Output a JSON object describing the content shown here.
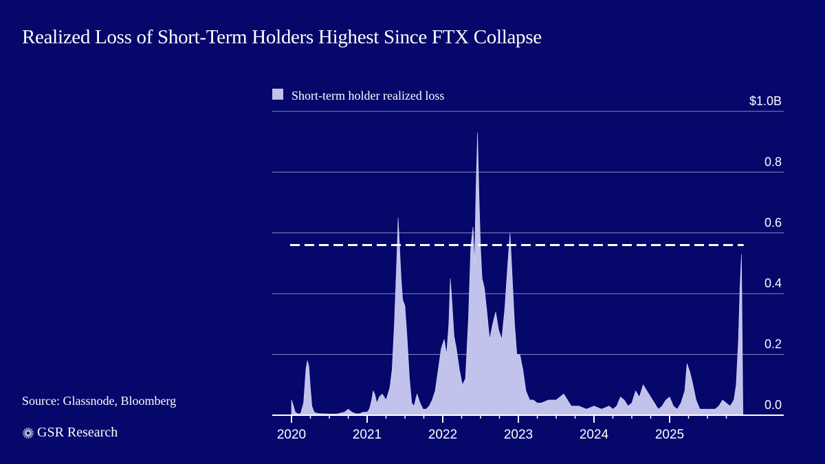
{
  "title": "Realized Loss of Short-Term Holders Highest Since FTX Collapse",
  "source": "Source: Glassnode, Bloomberg",
  "brand": "GSR Research",
  "colors": {
    "background": "#05076b",
    "area": "#c9c9ee",
    "text": "#ffffff",
    "grid": "#8a8cc4"
  },
  "chart_data": {
    "type": "area",
    "series": [
      {
        "name": "Short-term holder realized loss",
        "x": [
          2020.0,
          2020.02,
          2020.05,
          2020.08,
          2020.12,
          2020.16,
          2020.19,
          2020.21,
          2020.23,
          2020.25,
          2020.27,
          2020.3,
          2020.34,
          2020.4,
          2020.5,
          2020.6,
          2020.7,
          2020.75,
          2020.8,
          2020.85,
          2020.9,
          2020.95,
          2021.0,
          2021.03,
          2021.06,
          2021.08,
          2021.1,
          2021.13,
          2021.16,
          2021.2,
          2021.25,
          2021.3,
          2021.33,
          2021.36,
          2021.39,
          2021.41,
          2021.43,
          2021.45,
          2021.47,
          2021.5,
          2021.53,
          2021.56,
          2021.59,
          2021.62,
          2021.66,
          2021.7,
          2021.74,
          2021.78,
          2021.82,
          2021.86,
          2021.9,
          2021.94,
          2021.98,
          2022.02,
          2022.05,
          2022.08,
          2022.1,
          2022.12,
          2022.15,
          2022.18,
          2022.22,
          2022.26,
          2022.3,
          2022.34,
          2022.37,
          2022.4,
          2022.42,
          2022.44,
          2022.46,
          2022.48,
          2022.5,
          2022.52,
          2022.55,
          2022.58,
          2022.62,
          2022.66,
          2022.7,
          2022.74,
          2022.78,
          2022.82,
          2022.86,
          2022.89,
          2022.92,
          2022.95,
          2022.98,
          2023.02,
          2023.06,
          2023.1,
          2023.15,
          2023.2,
          2023.25,
          2023.3,
          2023.4,
          2023.5,
          2023.6,
          2023.65,
          2023.7,
          2023.8,
          2023.9,
          2024.0,
          2024.1,
          2024.2,
          2024.25,
          2024.3,
          2024.35,
          2024.4,
          2024.45,
          2024.5,
          2024.55,
          2024.6,
          2024.65,
          2024.7,
          2024.75,
          2024.8,
          2024.85,
          2024.9,
          2024.95,
          2025.0,
          2025.05,
          2025.1,
          2025.15,
          2025.2,
          2025.23,
          2025.27,
          2025.3,
          2025.35,
          2025.4,
          2025.45,
          2025.5,
          2025.55,
          2025.6,
          2025.65,
          2025.7,
          2025.75,
          2025.8,
          2025.85,
          2025.88,
          2025.91,
          2025.93,
          2025.95,
          2025.97
        ],
        "values": [
          0.05,
          0.035,
          0.01,
          0.005,
          0.005,
          0.04,
          0.15,
          0.18,
          0.16,
          0.09,
          0.03,
          0.01,
          0.006,
          0.005,
          0.004,
          0.004,
          0.01,
          0.02,
          0.01,
          0.005,
          0.005,
          0.01,
          0.01,
          0.02,
          0.05,
          0.08,
          0.07,
          0.04,
          0.06,
          0.07,
          0.05,
          0.09,
          0.15,
          0.3,
          0.5,
          0.65,
          0.55,
          0.45,
          0.38,
          0.36,
          0.25,
          0.12,
          0.04,
          0.03,
          0.07,
          0.04,
          0.02,
          0.02,
          0.03,
          0.05,
          0.08,
          0.15,
          0.22,
          0.25,
          0.2,
          0.3,
          0.45,
          0.38,
          0.26,
          0.22,
          0.15,
          0.1,
          0.12,
          0.32,
          0.55,
          0.62,
          0.5,
          0.75,
          0.93,
          0.72,
          0.55,
          0.45,
          0.42,
          0.35,
          0.25,
          0.3,
          0.34,
          0.28,
          0.25,
          0.35,
          0.5,
          0.6,
          0.45,
          0.3,
          0.2,
          0.2,
          0.15,
          0.08,
          0.05,
          0.05,
          0.04,
          0.04,
          0.05,
          0.05,
          0.07,
          0.05,
          0.03,
          0.03,
          0.02,
          0.03,
          0.02,
          0.03,
          0.02,
          0.03,
          0.06,
          0.05,
          0.03,
          0.04,
          0.08,
          0.06,
          0.1,
          0.08,
          0.06,
          0.04,
          0.02,
          0.03,
          0.05,
          0.06,
          0.03,
          0.02,
          0.04,
          0.08,
          0.17,
          0.14,
          0.11,
          0.05,
          0.02,
          0.02,
          0.02,
          0.02,
          0.02,
          0.03,
          0.05,
          0.04,
          0.03,
          0.05,
          0.1,
          0.25,
          0.42,
          0.53,
          0.0
        ]
      }
    ],
    "reference_line": {
      "value": 0.56,
      "style": "dashed"
    },
    "xlim": [
      2019.98,
      2026.6
    ],
    "ylim": [
      0,
      1.0
    ],
    "x_ticks": [
      2020,
      2021,
      2022,
      2023,
      2024,
      2025
    ],
    "x_tick_labels": [
      "2020",
      "2021",
      "2022",
      "2023",
      "2024",
      "2025"
    ],
    "y_ticks": [
      0.0,
      0.2,
      0.4,
      0.6,
      0.8,
      1.0
    ],
    "y_tick_labels": [
      "0.0",
      "0.2",
      "0.4",
      "0.6",
      "0.8",
      "$1.0B"
    ],
    "legend": {
      "label": "Short-term holder realized loss",
      "position": "top-left"
    },
    "grid": true
  }
}
